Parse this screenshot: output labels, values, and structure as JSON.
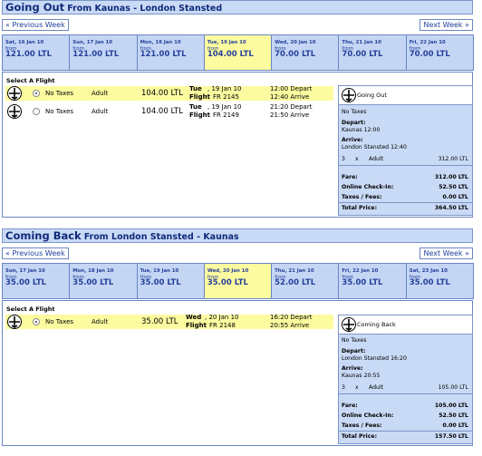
{
  "out": {
    "title": "Going Out",
    "route": "From Kaunas - London Stansted",
    "prev": "« Previous Week",
    "next": "Next Week »",
    "days": [
      {
        "label": "Sat, 16 Jan 10",
        "from": "from",
        "price": "121.00 LTL"
      },
      {
        "label": "Sun, 17 Jan 10",
        "from": "from",
        "price": "121.00 LTL"
      },
      {
        "label": "Mon, 18 Jan 10",
        "from": "from",
        "price": "121.00 LTL"
      },
      {
        "label": "Tue, 19 Jan 10",
        "from": "from",
        "price": "104.00 LTL"
      },
      {
        "label": "Wed, 20 Jan 10",
        "from": "from",
        "price": "70.00 LTL"
      },
      {
        "label": "Thu, 21 Jan 10",
        "from": "from",
        "price": "70.00 LTL"
      },
      {
        "label": "Fri, 22 Jan 10",
        "from": "from",
        "price": "70.00 LTL"
      }
    ],
    "select": "Select A Flight",
    "flights": [
      {
        "tax": "No Taxes",
        "type": "Adult",
        "price": "104.00 LTL",
        "day": "Tue",
        "date": ", 19 Jan 10",
        "fl": "Flight",
        "num": "FR 2145",
        "t1": "12:00 Depart",
        "t2": "12:40 Arrive"
      },
      {
        "tax": "No Taxes",
        "type": "Adult",
        "price": "104.00 LTL",
        "day": "Tue",
        "date": ", 19 Jan 10",
        "fl": "Flight",
        "num": "FR 2149",
        "t1": "21:20 Depart",
        "t2": "21:50 Arrive"
      }
    ],
    "summary": {
      "title": "Going Out",
      "taxes": "No Taxes",
      "depart_lbl": "Depart:",
      "depart": "Kaunas 12:00",
      "arrive_lbl": "Arrive:",
      "arrive": "London Stansted 12:40",
      "qty": "3",
      "x": "x",
      "pax": "Adult",
      "amount": "312.00 LTL",
      "fare_lbl": "Fare:",
      "fare": "312.00 LTL",
      "checkin_lbl": "Online Check-In:",
      "checkin": "52.50 LTL",
      "fees_lbl": "Taxes / Fees:",
      "fees": "0.00 LTL",
      "total_lbl": "Total Price:",
      "total": "364.50 LTL"
    }
  },
  "back": {
    "title": "Coming Back",
    "route": "From London Stansted - Kaunas",
    "prev": "« Previous Week",
    "next": "Next Week »",
    "days": [
      {
        "label": "Sun, 17 Jan 10",
        "from": "from",
        "price": "35.00 LTL"
      },
      {
        "label": "Mon, 18 Jan 10",
        "from": "from",
        "price": "35.00 LTL"
      },
      {
        "label": "Tue, 19 Jan 10",
        "from": "from",
        "price": "35.00 LTL"
      },
      {
        "label": "Wed, 20 Jan 10",
        "from": "from",
        "price": "35.00 LTL"
      },
      {
        "label": "Thu, 21 Jan 10",
        "from": "from",
        "price": "52.00 LTL"
      },
      {
        "label": "Fri, 22 Jan 10",
        "from": "from",
        "price": "35.00 LTL"
      },
      {
        "label": "Sat, 23 Jan 10",
        "from": "from",
        "price": "35.00 LTL"
      }
    ],
    "select": "Select A Flight",
    "flights": [
      {
        "tax": "No Taxes",
        "type": "Adult",
        "price": "35.00 LTL",
        "day": "Wed",
        "date": ", 20 Jan 10",
        "fl": "Flight",
        "num": "FR 2148",
        "t1": "16:20 Depart",
        "t2": "20:55 Arrive"
      }
    ],
    "summary": {
      "title": "Coming Back",
      "taxes": "No Taxes",
      "depart_lbl": "Depart:",
      "depart": "London Stansted 16:20",
      "arrive_lbl": "Arrive:",
      "arrive": "Kaunas 20:55",
      "qty": "3",
      "x": "x",
      "pax": "Adult",
      "amount": "105.00 LTL",
      "fare_lbl": "Fare:",
      "fare": "105.00 LTL",
      "checkin_lbl": "Online Check-In:",
      "checkin": "52.50 LTL",
      "fees_lbl": "Taxes / Fees:",
      "fees": "0.00 LTL",
      "total_lbl": "Total Price:",
      "total": "157.50 LTL"
    }
  },
  "icons": {
    "plane": "plane-icon",
    "radio": "radio-button"
  }
}
